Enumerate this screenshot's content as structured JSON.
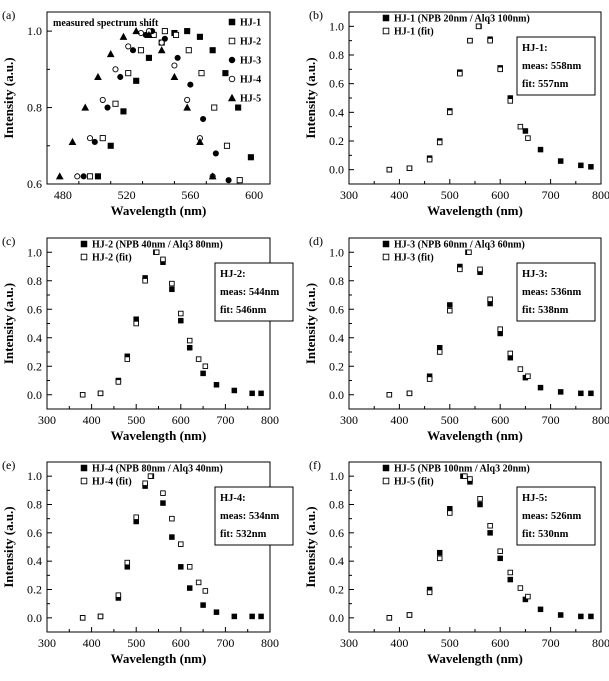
{
  "figure": {
    "panel_ids": [
      "a",
      "b",
      "c",
      "d",
      "e",
      "f"
    ]
  },
  "chart_data": [
    {
      "panel": "(a)",
      "type": "scatter",
      "annotation": "measured spectrum shift",
      "xlabel": "Wavelength (nm)",
      "ylabel": "Intensity (a.u.)",
      "xlim": [
        470,
        610
      ],
      "ylim": [
        0.6,
        1.05
      ],
      "xticks": [
        480,
        520,
        560,
        600
      ],
      "yticks": [
        0.6,
        0.8,
        1.0
      ],
      "xtick_labels": [
        "480",
        "520",
        "560",
        "600"
      ],
      "ytick_labels": [
        "0.6",
        "0.8",
        "1.0"
      ],
      "legend_position": "top-right",
      "series": [
        {
          "name": "HJ-1",
          "marker": "square-filled",
          "peak": 558,
          "x": [
            502,
            510,
            518,
            526,
            534,
            542,
            550,
            558,
            566,
            574,
            582,
            590,
            598
          ],
          "y": [
            0.62,
            0.7,
            0.79,
            0.87,
            0.93,
            0.97,
            0.995,
            1.0,
            0.985,
            0.95,
            0.89,
            0.8,
            0.67
          ]
        },
        {
          "name": "HJ-2",
          "marker": "square-open",
          "peak": 544,
          "x": [
            497,
            505,
            513,
            521,
            529,
            537,
            544,
            551,
            559,
            567,
            575,
            583,
            591
          ],
          "y": [
            0.62,
            0.72,
            0.81,
            0.89,
            0.95,
            0.99,
            1.0,
            0.99,
            0.95,
            0.89,
            0.8,
            0.7,
            0.61
          ]
        },
        {
          "name": "HJ-3",
          "marker": "circle-filled",
          "peak": 536,
          "x": [
            493,
            500,
            508,
            516,
            524,
            532,
            536,
            544,
            552,
            560,
            568,
            576,
            584
          ],
          "y": [
            0.62,
            0.71,
            0.8,
            0.88,
            0.95,
            0.99,
            1.0,
            0.98,
            0.93,
            0.86,
            0.77,
            0.68,
            0.61
          ]
        },
        {
          "name": "HJ-4",
          "marker": "circle-open",
          "peak": 534,
          "x": [
            489,
            497,
            505,
            513,
            521,
            529,
            534,
            542,
            550,
            558,
            566,
            574
          ],
          "y": [
            0.62,
            0.72,
            0.82,
            0.9,
            0.96,
            0.995,
            1.0,
            0.97,
            0.91,
            0.82,
            0.72,
            0.62
          ]
        },
        {
          "name": "HJ-5",
          "marker": "triangle-filled",
          "peak": 526,
          "x": [
            478,
            486,
            494,
            502,
            510,
            518,
            526,
            534,
            542,
            550,
            558,
            566,
            574
          ],
          "y": [
            0.62,
            0.71,
            0.8,
            0.88,
            0.94,
            0.985,
            1.0,
            0.99,
            0.95,
            0.88,
            0.8,
            0.71,
            0.62
          ]
        }
      ]
    },
    {
      "panel": "(b)",
      "type": "scatter",
      "xlabel": "Wavelength (nm)",
      "ylabel": "Intensity (a.u.)",
      "xlim": [
        300,
        800
      ],
      "ylim": [
        -0.1,
        1.1
      ],
      "xticks": [
        300,
        400,
        500,
        600,
        700,
        800
      ],
      "yticks": [
        0.0,
        0.2,
        0.4,
        0.6,
        0.8,
        1.0
      ],
      "xtick_labels": [
        "300",
        "400",
        "500",
        "600",
        "700",
        "800"
      ],
      "ytick_labels": [
        "0.0",
        "0.2",
        "0.4",
        "0.6",
        "0.8",
        "1.0"
      ],
      "legend_position": "top-left",
      "box": {
        "title": "HJ-1:",
        "meas": "meas: 558nm",
        "fit": "fit: 557nm"
      },
      "series": [
        {
          "name": "HJ-1 (NPB 20nm / Alq3 100nm)",
          "marker": "square-filled",
          "peak": 558,
          "x": [
            380,
            420,
            460,
            480,
            500,
            520,
            540,
            558,
            580,
            600,
            620,
            650,
            680,
            720,
            760,
            780
          ],
          "y": [
            0.0,
            0.01,
            0.08,
            0.2,
            0.41,
            0.68,
            0.9,
            1.0,
            0.91,
            0.71,
            0.5,
            0.27,
            0.14,
            0.06,
            0.03,
            0.02
          ]
        },
        {
          "name": "HJ-1 (fit)",
          "marker": "square-open",
          "peak": 557,
          "x": [
            380,
            420,
            460,
            480,
            500,
            520,
            540,
            557,
            580,
            600,
            620,
            640,
            655
          ],
          "y": [
            0.0,
            0.01,
            0.07,
            0.19,
            0.4,
            0.67,
            0.9,
            1.0,
            0.9,
            0.7,
            0.48,
            0.3,
            0.22
          ]
        }
      ]
    },
    {
      "panel": "(c)",
      "type": "scatter",
      "xlabel": "Wavelength (nm)",
      "ylabel": "Intensity (a.u.)",
      "xlim": [
        300,
        800
      ],
      "ylim": [
        -0.1,
        1.1
      ],
      "xticks": [
        300,
        400,
        500,
        600,
        700,
        800
      ],
      "yticks": [
        0.0,
        0.2,
        0.4,
        0.6,
        0.8,
        1.0
      ],
      "xtick_labels": [
        "300",
        "400",
        "500",
        "600",
        "700",
        "800"
      ],
      "ytick_labels": [
        "0.0",
        "0.2",
        "0.4",
        "0.6",
        "0.8",
        "1.0"
      ],
      "legend_position": "top-left",
      "box": {
        "title": "HJ-2:",
        "meas": "meas: 544nm",
        "fit": "fit: 546nm"
      },
      "series": [
        {
          "name": "HJ-2 (NPB 40nm / Alq3 80nm)",
          "marker": "square-filled",
          "peak": 544,
          "x": [
            380,
            420,
            460,
            480,
            500,
            520,
            544,
            560,
            580,
            600,
            620,
            650,
            680,
            720,
            760,
            780
          ],
          "y": [
            0.0,
            0.01,
            0.1,
            0.27,
            0.53,
            0.82,
            1.0,
            0.93,
            0.74,
            0.52,
            0.33,
            0.15,
            0.07,
            0.03,
            0.01,
            0.01
          ]
        },
        {
          "name": "HJ-2 (fit)",
          "marker": "square-open",
          "peak": 546,
          "x": [
            380,
            420,
            460,
            480,
            500,
            520,
            546,
            560,
            580,
            600,
            620,
            640,
            655
          ],
          "y": [
            0.0,
            0.01,
            0.09,
            0.25,
            0.5,
            0.8,
            1.0,
            0.95,
            0.78,
            0.57,
            0.38,
            0.25,
            0.2
          ]
        }
      ]
    },
    {
      "panel": "(d)",
      "type": "scatter",
      "xlabel": "Wavelength (nm)",
      "ylabel": "Intensity (a.u.)",
      "xlim": [
        300,
        800
      ],
      "ylim": [
        -0.1,
        1.1
      ],
      "xticks": [
        300,
        400,
        500,
        600,
        700,
        800
      ],
      "yticks": [
        0.0,
        0.2,
        0.4,
        0.6,
        0.8,
        1.0
      ],
      "xtick_labels": [
        "300",
        "400",
        "500",
        "600",
        "700",
        "800"
      ],
      "ytick_labels": [
        "0.0",
        "0.2",
        "0.4",
        "0.6",
        "0.8",
        "1.0"
      ],
      "legend_position": "top-left",
      "box": {
        "title": "HJ-3:",
        "meas": "meas: 536nm",
        "fit": "fit: 538nm"
      },
      "series": [
        {
          "name": "HJ-3 (NPB 60nm / Alq3 60nm)",
          "marker": "square-filled",
          "peak": 536,
          "x": [
            380,
            420,
            460,
            480,
            500,
            520,
            536,
            560,
            580,
            600,
            620,
            650,
            680,
            720,
            760,
            780
          ],
          "y": [
            0.0,
            0.01,
            0.13,
            0.33,
            0.63,
            0.9,
            1.0,
            0.86,
            0.64,
            0.43,
            0.26,
            0.12,
            0.05,
            0.02,
            0.01,
            0.01
          ]
        },
        {
          "name": "HJ-3 (fit)",
          "marker": "square-open",
          "peak": 538,
          "x": [
            380,
            420,
            460,
            480,
            500,
            520,
            538,
            560,
            580,
            600,
            620,
            640,
            655
          ],
          "y": [
            0.0,
            0.01,
            0.11,
            0.3,
            0.59,
            0.88,
            1.0,
            0.88,
            0.67,
            0.46,
            0.29,
            0.18,
            0.13
          ]
        }
      ]
    },
    {
      "panel": "(e)",
      "type": "scatter",
      "xlabel": "Wavelength (nm)",
      "ylabel": "Intensity (a.u.)",
      "xlim": [
        300,
        800
      ],
      "ylim": [
        -0.1,
        1.1
      ],
      "xticks": [
        300,
        400,
        500,
        600,
        700,
        800
      ],
      "yticks": [
        0.0,
        0.2,
        0.4,
        0.6,
        0.8,
        1.0
      ],
      "xtick_labels": [
        "300",
        "400",
        "500",
        "600",
        "700",
        "800"
      ],
      "ytick_labels": [
        "0.0",
        "0.2",
        "0.4",
        "0.6",
        "0.8",
        "1.0"
      ],
      "legend_position": "top-left",
      "box": {
        "title": "HJ-4:",
        "meas": "meas: 534nm",
        "fit": "fit: 532nm"
      },
      "series": [
        {
          "name": "HJ-4 (NPB 80nm / Alq3 40nm)",
          "marker": "square-filled",
          "peak": 534,
          "x": [
            380,
            420,
            460,
            480,
            500,
            520,
            534,
            560,
            580,
            600,
            620,
            650,
            680,
            720,
            760,
            780
          ],
          "y": [
            0.0,
            0.01,
            0.14,
            0.36,
            0.68,
            0.93,
            1.0,
            0.81,
            0.57,
            0.36,
            0.21,
            0.09,
            0.04,
            0.01,
            0.01,
            0.01
          ]
        },
        {
          "name": "HJ-4 (fit)",
          "marker": "square-open",
          "peak": 532,
          "x": [
            380,
            420,
            460,
            480,
            500,
            520,
            532,
            560,
            580,
            600,
            620,
            640,
            655
          ],
          "y": [
            0.0,
            0.01,
            0.16,
            0.39,
            0.71,
            0.95,
            1.0,
            0.88,
            0.7,
            0.52,
            0.36,
            0.25,
            0.19
          ]
        }
      ]
    },
    {
      "panel": "(f)",
      "type": "scatter",
      "xlabel": "Wavelength (nm)",
      "ylabel": "Intensity (a.u.)",
      "xlim": [
        300,
        800
      ],
      "ylim": [
        -0.1,
        1.1
      ],
      "xticks": [
        300,
        400,
        500,
        600,
        700,
        800
      ],
      "yticks": [
        0.0,
        0.2,
        0.4,
        0.6,
        0.8,
        1.0
      ],
      "xtick_labels": [
        "300",
        "400",
        "500",
        "600",
        "700",
        "800"
      ],
      "ytick_labels": [
        "0.0",
        "0.2",
        "0.4",
        "0.6",
        "0.8",
        "1.0"
      ],
      "legend_position": "top-left",
      "box": {
        "title": "HJ-5:",
        "meas": "meas: 526nm",
        "fit": "fit: 530nm"
      },
      "series": [
        {
          "name": "HJ-5 (NPB 100nm / Alq3 20nm)",
          "marker": "square-filled",
          "peak": 526,
          "x": [
            380,
            420,
            460,
            480,
            500,
            526,
            540,
            560,
            580,
            600,
            620,
            650,
            680,
            720,
            760,
            780
          ],
          "y": [
            0.0,
            0.02,
            0.2,
            0.46,
            0.77,
            1.0,
            0.96,
            0.8,
            0.6,
            0.42,
            0.27,
            0.13,
            0.06,
            0.02,
            0.01,
            0.01
          ]
        },
        {
          "name": "HJ-5 (fit)",
          "marker": "square-open",
          "peak": 530,
          "x": [
            380,
            420,
            460,
            480,
            500,
            530,
            540,
            560,
            580,
            600,
            620,
            640,
            655
          ],
          "y": [
            0.0,
            0.02,
            0.18,
            0.42,
            0.74,
            1.0,
            0.98,
            0.84,
            0.65,
            0.47,
            0.32,
            0.21,
            0.15
          ]
        }
      ]
    }
  ]
}
